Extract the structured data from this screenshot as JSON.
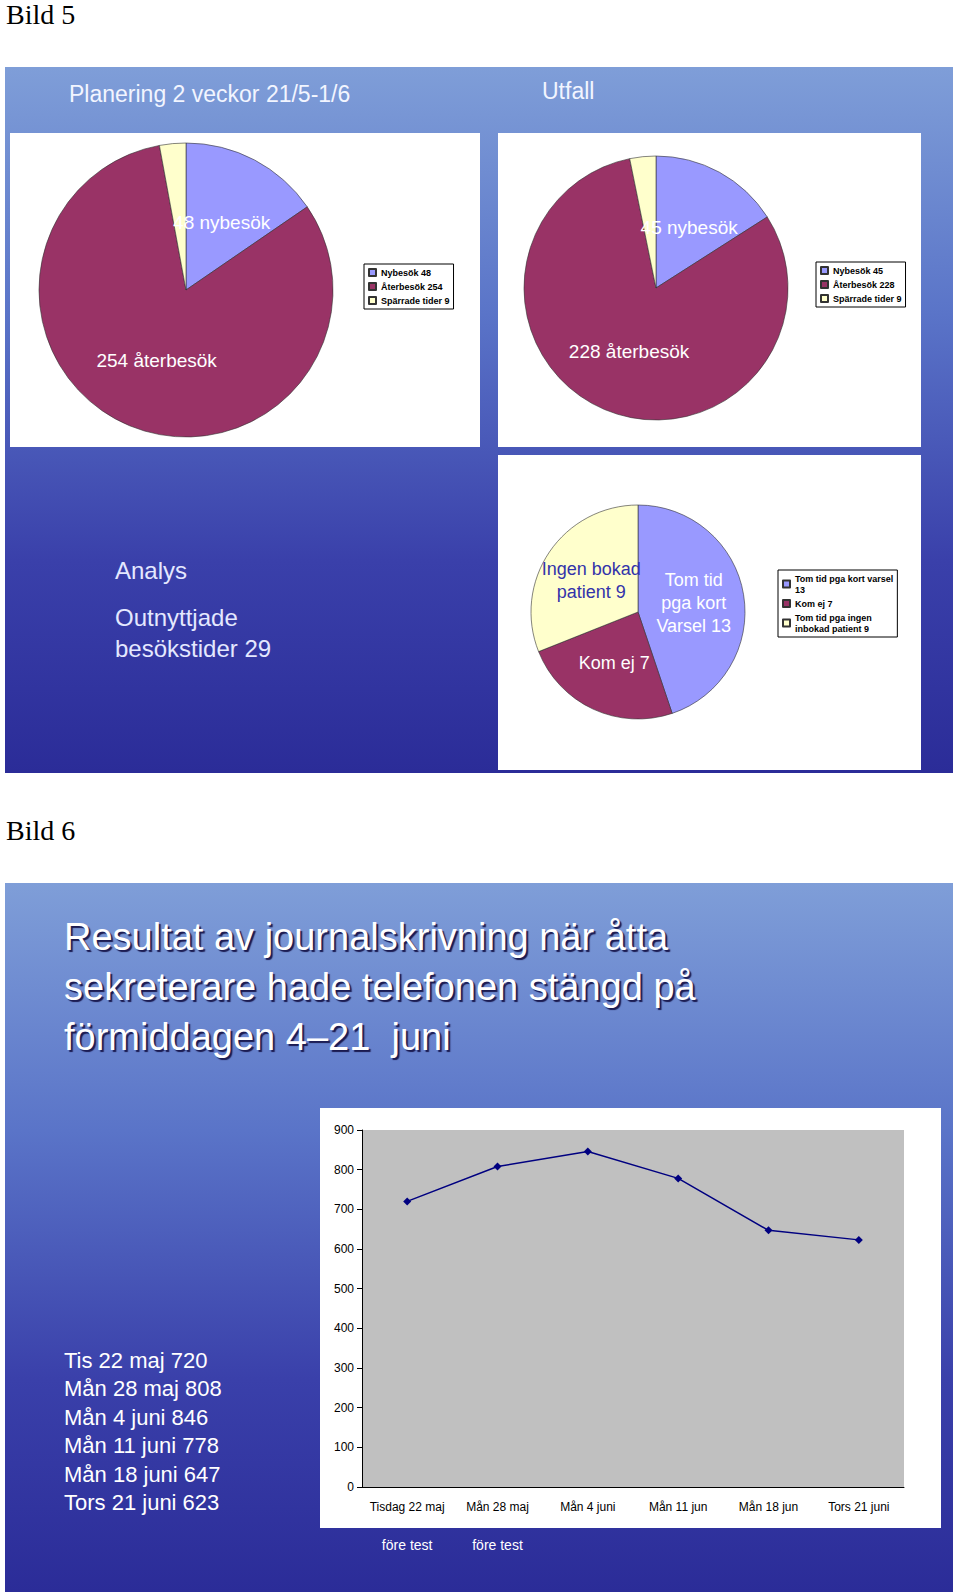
{
  "slides": [
    {
      "label": "Bild 5",
      "title": "Planering 2 veckor 21/5-1/6",
      "subtitle": "Utfall",
      "annotations": [
        "Analys",
        "Outnyttjade",
        "besökstider 29"
      ]
    },
    {
      "label": "Bild 6",
      "title": "Resultat av journalskrivning när åtta\nsekreterare hade telefonen stängd på\nförmiddagen 4–21  juni",
      "annotations": [
        "Tis 22 maj 720",
        "Mån 28 maj 808",
        "Mån 4 juni 846",
        "Mån 11 juni 778",
        "Mån 18 juni 647",
        "Tors 21 juni 623"
      ]
    }
  ],
  "chart_data": [
    {
      "type": "pie",
      "categories": [
        "Nybesök 48",
        "Återbesök 254",
        "Spärrade tider 9"
      ],
      "values": [
        48,
        254,
        9
      ],
      "colors": [
        "#9999ff",
        "#993366",
        "#ffffcc"
      ],
      "value_labels": [
        "48 nybesök",
        "254 återbesök",
        null
      ],
      "legend": "right"
    },
    {
      "type": "pie",
      "categories": [
        "Nybesök 45",
        "Återbesök 228",
        "Spärrade tider 9"
      ],
      "values": [
        45,
        228,
        9
      ],
      "colors": [
        "#9999ff",
        "#993366",
        "#ffffcc"
      ],
      "value_labels": [
        "45 nybesök",
        "228 återbesök",
        null
      ],
      "legend": "right"
    },
    {
      "type": "pie",
      "categories": [
        "Tom tid pga kort varsel\n13",
        "Kom ej 7",
        "Tom tid pga ingen\ninbokad patient 9"
      ],
      "values": [
        13,
        7,
        9
      ],
      "colors": [
        "#9999ff",
        "#993366",
        "#ffffcc"
      ],
      "value_labels": [
        "Tom tid\npga kort\nVarsel 13",
        "Kom ej 7",
        "Ingen bokad\npatient 9"
      ],
      "legend": "right"
    },
    {
      "type": "line",
      "categories": [
        "Tisdag 22 maj",
        "Mån 28 maj",
        "Mån 4 juni",
        "Mån 11 jun",
        "Mån 18 jun",
        "Tors 21 juni"
      ],
      "values": [
        720,
        808,
        846,
        778,
        647,
        623
      ],
      "color": "#000080",
      "marker": "diamond",
      "ylim": [
        0,
        900
      ],
      "yticks": [
        0,
        100,
        200,
        300,
        400,
        500,
        600,
        700,
        800,
        900
      ],
      "grid": false,
      "annotations": [
        {
          "category": "Tisdag 22 maj",
          "text": "före test"
        },
        {
          "category": "Mån 28 maj",
          "text": "före test"
        }
      ]
    }
  ]
}
